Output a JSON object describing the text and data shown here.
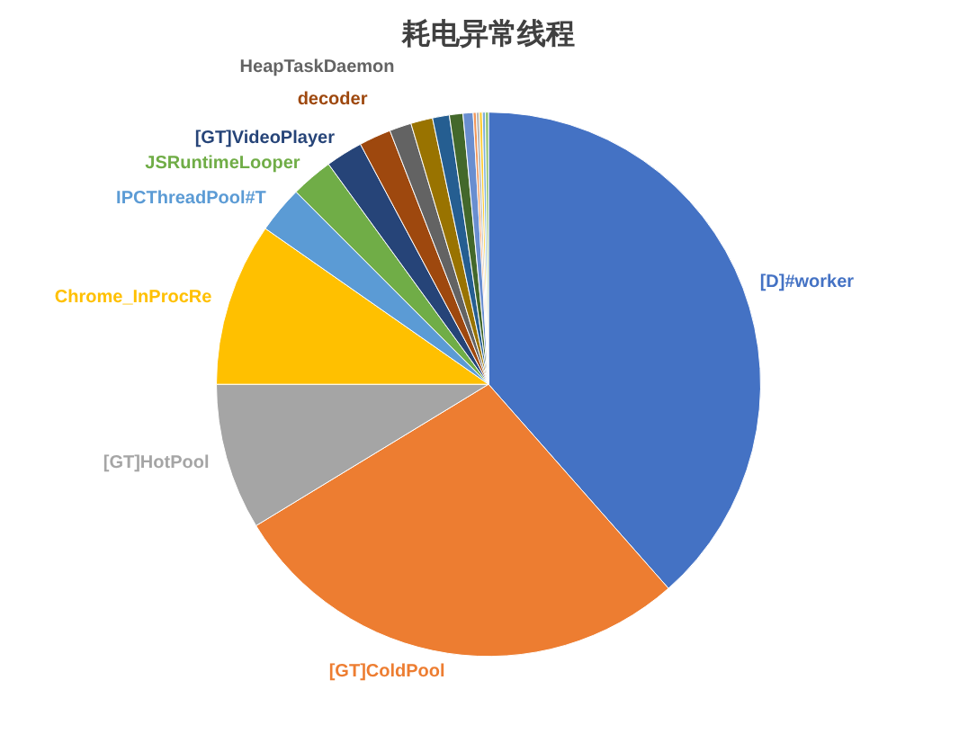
{
  "chart_data": {
    "type": "pie",
    "title": "耗电异常线程",
    "categories": [
      "[D]#worker",
      "[GT]ColdPool",
      "[GT]HotPool",
      "Chrome_InProcRe",
      "IPCThreadPool#T",
      "JSRuntimeLooper",
      "[GT]VideoPlayer",
      "decoder",
      "HeapTaskDaemon",
      null,
      null,
      null,
      null,
      null,
      null,
      null,
      null,
      null
    ],
    "values": [
      38.5,
      27.8,
      8.7,
      9.7,
      2.8,
      2.5,
      2.2,
      1.9,
      1.3,
      1.3,
      1.0,
      0.8,
      0.6,
      0.18,
      0.18,
      0.18,
      0.18,
      0.18
    ],
    "colors": [
      "#4472c4",
      "#ed7d31",
      "#a5a5a5",
      "#ffc000",
      "#5b9bd5",
      "#70ad47",
      "#264478",
      "#9e480e",
      "#636363",
      "#997300",
      "#255e91",
      "#43682b",
      "#698ed0",
      "#f1975a",
      "#b7b7b7",
      "#ffcd33",
      "#7cafdd",
      "#8cc168"
    ],
    "legend": false
  }
}
